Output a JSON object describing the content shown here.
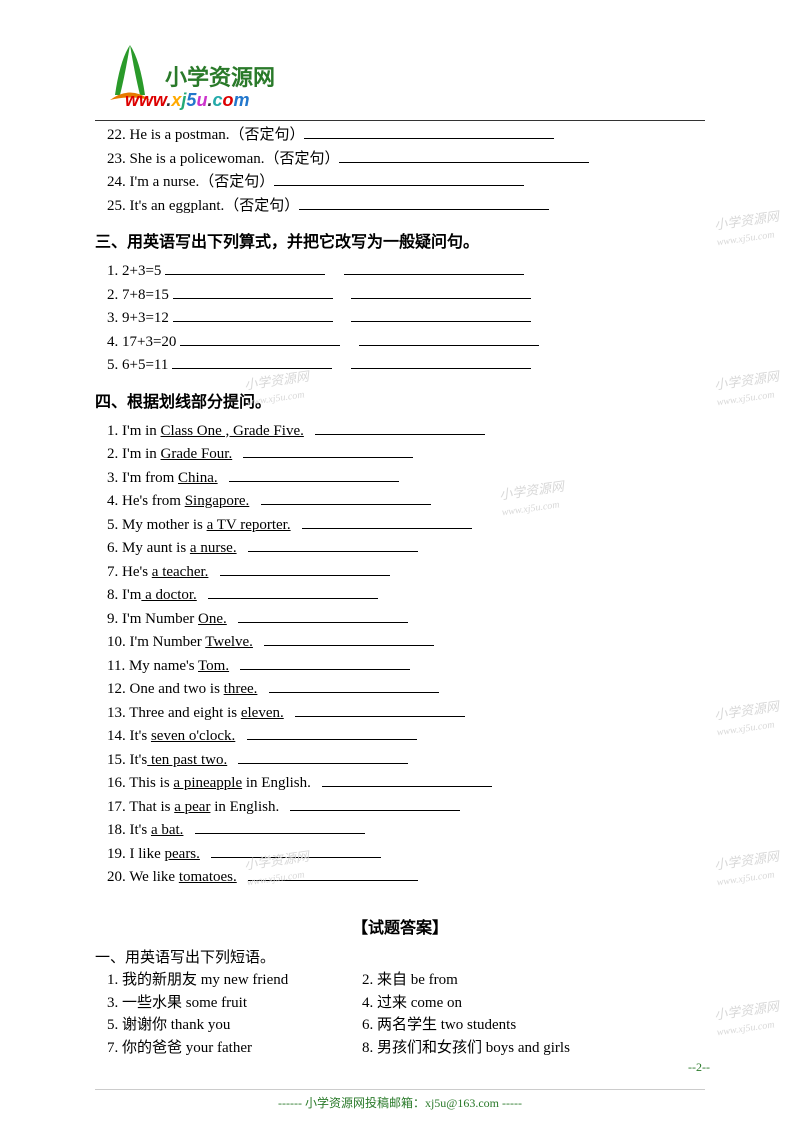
{
  "logo": {
    "title": "小学资源网",
    "url_parts": [
      "w",
      "w",
      "w",
      ".",
      "x",
      "j",
      "5",
      "u",
      ".",
      "c",
      "o",
      "m"
    ]
  },
  "section2": {
    "items": [
      {
        "n": "22",
        "text": "He is a postman.（否定句）"
      },
      {
        "n": "23",
        "text": "She is a policewoman.（否定句）"
      },
      {
        "n": "24",
        "text": "I'm a nurse.（否定句）"
      },
      {
        "n": "25",
        "text": "It's an eggplant.（否定句）"
      }
    ]
  },
  "section3": {
    "heading": "三、用英语写出下列算式，并把它改写为一般疑问句。",
    "items": [
      {
        "n": "1",
        "text": "2+3=5"
      },
      {
        "n": "2",
        "text": "7+8=15"
      },
      {
        "n": "3",
        "text": "9+3=12"
      },
      {
        "n": "4",
        "text": "17+3=20"
      },
      {
        "n": "5",
        "text": "6+5=11"
      }
    ]
  },
  "section4": {
    "heading": "四、根据划线部分提问。",
    "items": [
      {
        "n": "1",
        "pre": "I'm in ",
        "u": "Class One , Grade Five.",
        "post": ""
      },
      {
        "n": "2",
        "pre": "I'm in ",
        "u": "Grade Four.",
        "post": ""
      },
      {
        "n": "3",
        "pre": "I'm from ",
        "u": "China.",
        "post": ""
      },
      {
        "n": "4",
        "pre": "He's from ",
        "u": "Singapore.",
        "post": ""
      },
      {
        "n": "5",
        "pre": "My mother is ",
        "u": "a TV reporter.",
        "post": ""
      },
      {
        "n": "6",
        "pre": "My aunt is ",
        "u": "a nurse.",
        "post": ""
      },
      {
        "n": "7",
        "pre": "He's ",
        "u": "a teacher.",
        "post": ""
      },
      {
        "n": "8",
        "pre": "I'm",
        "u": " a doctor.",
        "post": ""
      },
      {
        "n": "9",
        "pre": "I'm Number ",
        "u": "One.",
        "post": ""
      },
      {
        "n": "10",
        "pre": "I'm Number ",
        "u": "Twelve.",
        "post": ""
      },
      {
        "n": "11",
        "pre": "My name's ",
        "u": "Tom.",
        "post": ""
      },
      {
        "n": "12",
        "pre": "One and two is ",
        "u": "three.",
        "post": ""
      },
      {
        "n": "13",
        "pre": "Three and eight is ",
        "u": "eleven.",
        "post": ""
      },
      {
        "n": "14",
        "pre": "It's ",
        "u": "seven o'clock.",
        "post": ""
      },
      {
        "n": "15",
        "pre": "It's",
        "u": " ten past two.",
        "post": ""
      },
      {
        "n": "16",
        "pre": "This is ",
        "u": "a pineapple",
        "post": " in English."
      },
      {
        "n": "17",
        "pre": "That is ",
        "u": "a pear",
        "post": " in English."
      },
      {
        "n": "18",
        "pre": "It's ",
        "u": "a bat.",
        "post": ""
      },
      {
        "n": "19",
        "pre": "I like ",
        "u": "pears.",
        "post": ""
      },
      {
        "n": "20",
        "pre": "We like ",
        "u": "tomatoes.",
        "post": ""
      }
    ]
  },
  "answers": {
    "title": "【试题答案】",
    "heading": "一、用英语写出下列短语。",
    "rows": [
      {
        "l": "1.  我的新朋友  my new friend",
        "r": "2.  来自  be from"
      },
      {
        "l": "3.  一些水果    some fruit",
        "r": "4.  过来 come on"
      },
      {
        "l": "5.  谢谢你 thank you",
        "r": "6.  两名学生 two students"
      },
      {
        "l": "7.  你的爸爸 your father",
        "r": "8.  男孩们和女孩们 boys and girls"
      }
    ]
  },
  "footer": {
    "text": "------ 小学资源网投稿邮箱：xj5u@163.com -----",
    "page": "--2--"
  },
  "watermarks": [
    {
      "text": "小学资源网",
      "sub": "www.xj5u.com"
    }
  ],
  "blank_widths": {
    "s2": 250,
    "s3a": 160,
    "s3b": 180,
    "s4": 170
  }
}
